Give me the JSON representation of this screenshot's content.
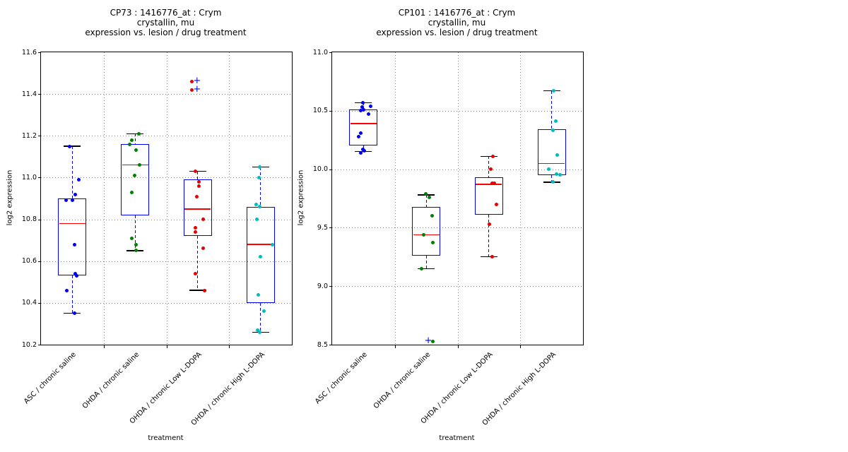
{
  "figure": {
    "background": "#ffffff"
  },
  "style_colors": {
    "box_edge": "#0000ff",
    "median": "#ff0000",
    "whisker": "#0000ff",
    "cap": "#000000",
    "flier": "#0000ff",
    "grid": "#8a8a8a",
    "text": "#000000"
  },
  "chart_data": [
    {
      "type": "boxplot",
      "title_lines": [
        "CP73 : 1416776_at : Crym",
        "crystallin, mu",
        "expression vs. lesion / drug treatment"
      ],
      "xlabel": "treatment",
      "ylabel": "log2 expression",
      "ylim": [
        10.2,
        11.6
      ],
      "yticks": [
        10.2,
        10.4,
        10.6,
        10.8,
        11.0,
        11.2,
        11.4,
        11.6
      ],
      "grid": "dotted",
      "categories": [
        "ASC / chronic saline",
        "OHDA / chronic saline",
        "OHDA / chronic Low L-DOPA",
        "OHDA / chronic High L-DOPA"
      ],
      "groups": [
        {
          "category": "ASC / chronic saline",
          "dot_color": "#0000ee",
          "box": {
            "lo": 10.35,
            "q1": 10.53,
            "median": 10.78,
            "q3": 10.9,
            "hi": 11.15
          },
          "points": [
            [
              -4,
              11.15
            ],
            [
              9,
              10.99
            ],
            [
              4,
              10.92
            ],
            [
              -9,
              10.89
            ],
            [
              0,
              10.89
            ],
            [
              3,
              10.68
            ],
            [
              4,
              10.54
            ],
            [
              6,
              10.53
            ],
            [
              -8,
              10.46
            ],
            [
              3,
              10.35
            ]
          ],
          "fliers": []
        },
        {
          "category": "OHDA / chronic saline",
          "dot_color": "#008000",
          "box": {
            "lo": 10.65,
            "q1": 10.82,
            "median": 11.06,
            "q3": 11.16,
            "hi": 11.21
          },
          "points": [
            [
              5,
              11.21
            ],
            [
              -5,
              11.18
            ],
            [
              -8,
              11.16
            ],
            [
              1,
              11.13
            ],
            [
              6,
              11.06
            ],
            [
              -1,
              11.01
            ],
            [
              -5,
              10.93
            ],
            [
              -5,
              10.71
            ],
            [
              1,
              10.68
            ],
            [
              1,
              10.65
            ]
          ],
          "fliers": []
        },
        {
          "category": "OHDA / chronic Low L-DOPA",
          "dot_color": "#e60000",
          "box": {
            "lo": 10.46,
            "q1": 10.72,
            "median": 10.85,
            "q3": 10.99,
            "hi": 11.03
          },
          "points": [
            [
              -8,
              11.46
            ],
            [
              -8,
              11.42
            ],
            [
              -3,
              11.03
            ],
            [
              2,
              10.98
            ],
            [
              2,
              10.96
            ],
            [
              -1,
              10.91
            ],
            [
              8,
              10.8
            ],
            [
              -3,
              10.76
            ],
            [
              -3,
              10.74
            ],
            [
              8,
              10.66
            ],
            [
              -3,
              10.54
            ],
            [
              10,
              10.46
            ]
          ],
          "fliers": [
            [
              -1,
              11.46
            ],
            [
              -1,
              11.42
            ]
          ]
        },
        {
          "category": "OHDA / chronic High L-DOPA",
          "dot_color": "#00bdbd",
          "box": {
            "lo": 10.26,
            "q1": 10.4,
            "median": 10.68,
            "q3": 10.86,
            "hi": 11.05
          },
          "points": [
            [
              -1,
              11.05
            ],
            [
              -2,
              11.0
            ],
            [
              -6,
              10.87
            ],
            [
              -1,
              10.86
            ],
            [
              -5,
              10.8
            ],
            [
              17,
              10.68
            ],
            [
              0,
              10.62
            ],
            [
              -3,
              10.44
            ],
            [
              5,
              10.36
            ],
            [
              -4,
              10.27
            ],
            [
              -1,
              10.26
            ]
          ],
          "fliers": []
        }
      ]
    },
    {
      "type": "boxplot",
      "title_lines": [
        "CP101 : 1416776_at : Crym",
        "crystallin, mu",
        "expression vs. lesion / drug treatment"
      ],
      "xlabel": "treatment",
      "ylabel": "log2 expression",
      "ylim": [
        8.5,
        11.0
      ],
      "yticks": [
        8.5,
        9.0,
        9.5,
        10.0,
        10.5,
        11.0
      ],
      "grid": "dotted",
      "categories": [
        "ASC / chronic saline",
        "OHDA / chronic saline",
        "OHDA / chronic Low L-DOPA",
        "OHDA / chronic High L-DOPA"
      ],
      "groups": [
        {
          "category": "ASC / chronic saline",
          "dot_color": "#0000ee",
          "box": {
            "lo": 10.15,
            "q1": 10.2,
            "median": 10.39,
            "q3": 10.51,
            "hi": 10.57
          },
          "points": [
            [
              -1,
              10.57
            ],
            [
              10,
              10.54
            ],
            [
              -2,
              10.53
            ],
            [
              0,
              10.51
            ],
            [
              -4,
              10.5
            ],
            [
              7,
              10.47
            ],
            [
              -4,
              10.31
            ],
            [
              -7,
              10.28
            ],
            [
              -1,
              10.17
            ],
            [
              1,
              10.16
            ],
            [
              -4,
              10.14
            ]
          ],
          "fliers": []
        },
        {
          "category": "OHDA / chronic saline",
          "dot_color": "#008000",
          "box": {
            "lo": 9.15,
            "q1": 9.26,
            "median": 9.44,
            "q3": 9.68,
            "hi": 9.78
          },
          "points": [
            [
              -1,
              9.79
            ],
            [
              4,
              9.76
            ],
            [
              8,
              9.6
            ],
            [
              -4,
              9.44
            ],
            [
              9,
              9.37
            ],
            [
              -7,
              9.15
            ],
            [
              9,
              8.53
            ]
          ],
          "fliers": [
            [
              3,
              8.53
            ]
          ]
        },
        {
          "category": "OHDA / chronic Low L-DOPA",
          "dot_color": "#e60000",
          "box": {
            "lo": 9.25,
            "q1": 9.61,
            "median": 9.87,
            "q3": 9.93,
            "hi": 10.11
          },
          "points": [
            [
              6,
              10.11
            ],
            [
              3,
              10.0
            ],
            [
              5,
              9.88
            ],
            [
              8,
              9.88
            ],
            [
              11,
              9.7
            ],
            [
              1,
              9.53
            ],
            [
              5,
              9.25
            ]
          ],
          "fliers": []
        },
        {
          "category": "OHDA / chronic High L-DOPA",
          "dot_color": "#00bdbd",
          "box": {
            "lo": 9.89,
            "q1": 9.95,
            "median": 10.05,
            "q3": 10.34,
            "hi": 10.67
          },
          "points": [
            [
              3,
              10.67
            ],
            [
              6,
              10.41
            ],
            [
              2,
              10.33
            ],
            [
              8,
              10.12
            ],
            [
              -4,
              10.0
            ],
            [
              7,
              9.96
            ],
            [
              12,
              9.95
            ],
            [
              2,
              9.89
            ]
          ],
          "fliers": []
        }
      ]
    }
  ]
}
